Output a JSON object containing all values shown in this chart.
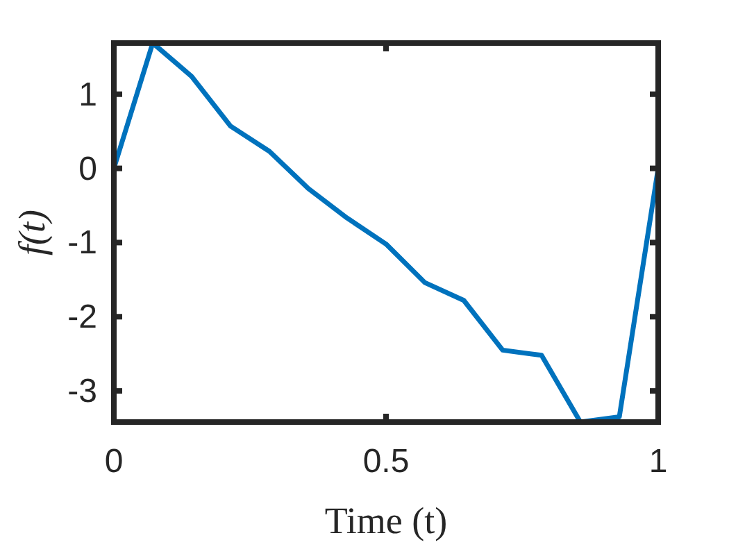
{
  "chart_data": {
    "type": "line",
    "xlabel": "Time (t)",
    "ylabel": "f(t)",
    "x": [
      0,
      0.0714,
      0.1429,
      0.2143,
      0.2857,
      0.3571,
      0.4286,
      0.5,
      0.5714,
      0.6429,
      0.7143,
      0.7857,
      0.8571,
      0.9286,
      1
    ],
    "series": [
      {
        "color": "#0072bd",
        "values": [
          0,
          1.69,
          1.24,
          0.57,
          0.23,
          -0.27,
          -0.67,
          -1.02,
          -1.54,
          -1.78,
          -2.45,
          -2.52,
          -3.42,
          -3.35,
          0
        ]
      }
    ],
    "xlim": [
      0,
      1
    ],
    "xticks": [
      0,
      0.5,
      1
    ],
    "ylim": [
      -3.42,
      1.69
    ],
    "yticks": [
      -3,
      -2,
      -1,
      0,
      1
    ],
    "grid": false,
    "marker": "none",
    "line_style": "solid"
  }
}
